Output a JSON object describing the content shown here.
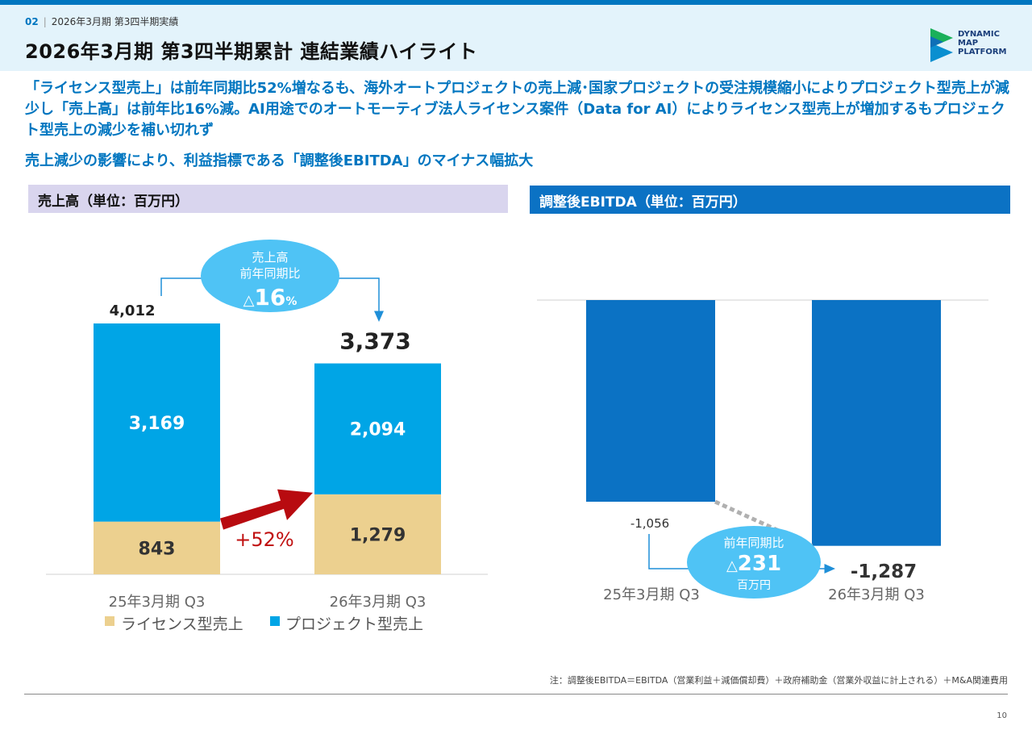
{
  "header": {
    "section_number": "02",
    "section_title": "2026年3月期 第3四半期実績",
    "title": "2026年3月期 第3四半期累計 連結業績ハイライト",
    "logo_text": "DYNAMIC MAP PLATFORM"
  },
  "lead": {
    "paragraph": "「ライセンス型売上」は前年同期比52%増なるも、海外オートプロジェクトの売上減･国家プロジェクトの受注規模縮小によりプロジェクト型売上が減少し「売上高」は前年比16%減。AI用途でのオートモーティブ法人ライセンス案件（Data for AI）によりライセンス型売上が増加するもプロジェクト型売上の減少を補い切れず",
    "line2": "売上減少の影響により、利益指標である「調整後EBITDA」のマイナス幅拡大"
  },
  "left_panel": {
    "heading": "売上高（単位：百万円）"
  },
  "right_panel": {
    "heading": "調整後EBITDA（単位：百万円）"
  },
  "footnote": "注：調整後EBITDA＝EBITDA（営業利益＋減価償却費）＋政府補助金（営業外収益に計上される）＋M&A関連費用",
  "page_number": "10",
  "chart_data": [
    {
      "type": "bar",
      "stacked": true,
      "title": "売上高（単位：百万円）",
      "categories": [
        "25年3月期 Q3",
        "26年3月期 Q3"
      ],
      "series": [
        {
          "name": "ライセンス型売上",
          "values": [
            843,
            1279
          ],
          "labels": [
            "843",
            "1,279"
          ],
          "color": "#ecd08f"
        },
        {
          "name": "プロジェクト型売上",
          "values": [
            3169,
            2094
          ],
          "labels": [
            "3,169",
            "2,094"
          ],
          "color": "#00a5e6"
        }
      ],
      "totals": [
        4012,
        3373
      ],
      "total_labels": [
        "4,012",
        "3,373"
      ],
      "ylim": [
        0,
        4300
      ],
      "legend_position": "bottom",
      "callout": {
        "line1": "売上高",
        "line2": "前年同期比",
        "prefix": "△",
        "value": "16",
        "unit": "%"
      },
      "growth_annotation": "+52%"
    },
    {
      "type": "bar",
      "title": "調整後EBITDA（単位：百万円）",
      "categories": [
        "25年3月期 Q3",
        "26年3月期 Q3"
      ],
      "values": [
        -1056,
        -1287
      ],
      "labels": [
        "-1,056",
        "-1,287"
      ],
      "color": "#0b72c4",
      "ylim": [
        -1350,
        0
      ],
      "callout": {
        "line1": "前年同期比",
        "prefix": "△",
        "value": "231",
        "unit": "百万円"
      }
    }
  ]
}
